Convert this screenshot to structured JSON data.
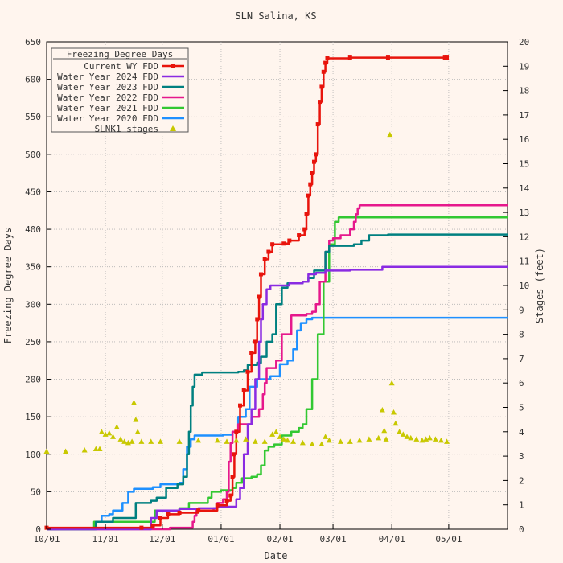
{
  "chart_data": {
    "type": "line",
    "title": "SLN Salina, KS",
    "xlabel": "Date",
    "ylabel": "Freezing Degree Days",
    "y2label": "Stages (feet)",
    "x_ticks": [
      "10/01",
      "11/01",
      "12/01",
      "01/01",
      "02/01",
      "03/01",
      "04/01",
      "05/01"
    ],
    "xlim_days": [
      0,
      243
    ],
    "ylim": [
      0,
      650
    ],
    "y_ticks": [
      0,
      50,
      100,
      150,
      200,
      250,
      300,
      350,
      400,
      450,
      500,
      550,
      600,
      650
    ],
    "y2lim": [
      0,
      20
    ],
    "y2_ticks": [
      0,
      1,
      2,
      3,
      4,
      5,
      6,
      7,
      8,
      9,
      10,
      11,
      12,
      13,
      14,
      15,
      16,
      17,
      18,
      19,
      20
    ],
    "grid": true,
    "legend": {
      "title": "Freezing Degree Days",
      "placement": "top-left"
    },
    "series": [
      {
        "name": "Current WY FDD",
        "color": "#e8140c",
        "marker": "filled-square-with-cross",
        "axis": "left",
        "points": [
          [
            0,
            2
          ],
          [
            50,
            2
          ],
          [
            56,
            5
          ],
          [
            60,
            15
          ],
          [
            64,
            20
          ],
          [
            70,
            22
          ],
          [
            80,
            25
          ],
          [
            90,
            32
          ],
          [
            95,
            38
          ],
          [
            97,
            45
          ],
          [
            98,
            70
          ],
          [
            99,
            100
          ],
          [
            100,
            130
          ],
          [
            102,
            165
          ],
          [
            104,
            185
          ],
          [
            106,
            210
          ],
          [
            108,
            235
          ],
          [
            110,
            250
          ],
          [
            111,
            280
          ],
          [
            112,
            310
          ],
          [
            113,
            340
          ],
          [
            115,
            360
          ],
          [
            117,
            370
          ],
          [
            119,
            380
          ],
          [
            125,
            381
          ],
          [
            128,
            385
          ],
          [
            133,
            392
          ],
          [
            136,
            400
          ],
          [
            137,
            420
          ],
          [
            138,
            445
          ],
          [
            139,
            460
          ],
          [
            140,
            475
          ],
          [
            141,
            490
          ],
          [
            142,
            500
          ],
          [
            143,
            540
          ],
          [
            144,
            570
          ],
          [
            145,
            590
          ],
          [
            146,
            610
          ],
          [
            147,
            622
          ],
          [
            148,
            628
          ],
          [
            160,
            629
          ],
          [
            180,
            629
          ],
          [
            210,
            629
          ],
          [
            211,
            629
          ]
        ]
      },
      {
        "name": "Water Year 2024 FDD",
        "color": "#8a2be2",
        "axis": "left",
        "points": [
          [
            0,
            0
          ],
          [
            53,
            0
          ],
          [
            55,
            15
          ],
          [
            58,
            25
          ],
          [
            70,
            27
          ],
          [
            80,
            28
          ],
          [
            90,
            30
          ],
          [
            100,
            40
          ],
          [
            102,
            55
          ],
          [
            104,
            100
          ],
          [
            106,
            140
          ],
          [
            108,
            160
          ],
          [
            110,
            200
          ],
          [
            112,
            250
          ],
          [
            113,
            280
          ],
          [
            114,
            300
          ],
          [
            116,
            320
          ],
          [
            118,
            325
          ],
          [
            124,
            325
          ],
          [
            128,
            328
          ],
          [
            135,
            330
          ],
          [
            138,
            340
          ],
          [
            142,
            342
          ],
          [
            147,
            345
          ],
          [
            160,
            346
          ],
          [
            176,
            346
          ],
          [
            177,
            350
          ],
          [
            243,
            350
          ]
        ]
      },
      {
        "name": "Water Year 2023 FDD",
        "color": "#008080",
        "axis": "left",
        "points": [
          [
            0,
            0
          ],
          [
            23,
            0
          ],
          [
            26,
            10
          ],
          [
            35,
            15
          ],
          [
            47,
            35
          ],
          [
            55,
            38
          ],
          [
            58,
            42
          ],
          [
            63,
            55
          ],
          [
            69,
            60
          ],
          [
            72,
            70
          ],
          [
            74,
            100
          ],
          [
            75,
            130
          ],
          [
            76,
            165
          ],
          [
            77,
            190
          ],
          [
            78,
            206
          ],
          [
            82,
            209
          ],
          [
            97,
            209
          ],
          [
            101,
            210
          ],
          [
            104,
            212
          ],
          [
            106,
            219
          ],
          [
            111,
            222
          ],
          [
            113,
            230
          ],
          [
            116,
            250
          ],
          [
            119,
            260
          ],
          [
            121,
            300
          ],
          [
            124,
            322
          ],
          [
            127,
            328
          ],
          [
            135,
            330
          ],
          [
            138,
            335
          ],
          [
            141,
            345
          ],
          [
            147,
            370
          ],
          [
            149,
            378
          ],
          [
            162,
            380
          ],
          [
            166,
            385
          ],
          [
            170,
            392
          ],
          [
            180,
            393
          ],
          [
            243,
            393
          ]
        ]
      },
      {
        "name": "Water Year 2022 FDD",
        "color": "#e6188c",
        "axis": "left",
        "points": [
          [
            0,
            0
          ],
          [
            60,
            0
          ],
          [
            65,
            2
          ],
          [
            77,
            10
          ],
          [
            78,
            18
          ],
          [
            79,
            25
          ],
          [
            88,
            28
          ],
          [
            90,
            35
          ],
          [
            93,
            40
          ],
          [
            95,
            50
          ],
          [
            96,
            90
          ],
          [
            97,
            115
          ],
          [
            98,
            130
          ],
          [
            101,
            140
          ],
          [
            108,
            150
          ],
          [
            112,
            160
          ],
          [
            114,
            180
          ],
          [
            115,
            195
          ],
          [
            116,
            215
          ],
          [
            121,
            225
          ],
          [
            124,
            260
          ],
          [
            129,
            285
          ],
          [
            137,
            287
          ],
          [
            140,
            290
          ],
          [
            142,
            300
          ],
          [
            144,
            330
          ],
          [
            147,
            370
          ],
          [
            149,
            385
          ],
          [
            151,
            388
          ],
          [
            155,
            392
          ],
          [
            160,
            400
          ],
          [
            162,
            410
          ],
          [
            163,
            420
          ],
          [
            164,
            428
          ],
          [
            165,
            432
          ],
          [
            243,
            432
          ]
        ]
      },
      {
        "name": "Water Year 2021 FDD",
        "color": "#32c832",
        "axis": "left",
        "points": [
          [
            0,
            0
          ],
          [
            23,
            0
          ],
          [
            25,
            10
          ],
          [
            55,
            10
          ],
          [
            57,
            25
          ],
          [
            70,
            28
          ],
          [
            75,
            35
          ],
          [
            85,
            42
          ],
          [
            87,
            50
          ],
          [
            92,
            52
          ],
          [
            98,
            55
          ],
          [
            100,
            62
          ],
          [
            103,
            68
          ],
          [
            108,
            70
          ],
          [
            111,
            73
          ],
          [
            113,
            85
          ],
          [
            115,
            105
          ],
          [
            117,
            110
          ],
          [
            120,
            113
          ],
          [
            124,
            125
          ],
          [
            129,
            130
          ],
          [
            133,
            135
          ],
          [
            135,
            140
          ],
          [
            137,
            160
          ],
          [
            140,
            200
          ],
          [
            143,
            260
          ],
          [
            146,
            330
          ],
          [
            149,
            380
          ],
          [
            152,
            410
          ],
          [
            154,
            416
          ],
          [
            243,
            416
          ]
        ]
      },
      {
        "name": "Water Year 2020 FDD",
        "color": "#1e90ff",
        "axis": "left",
        "points": [
          [
            0,
            0
          ],
          [
            24,
            0
          ],
          [
            26,
            10
          ],
          [
            29,
            18
          ],
          [
            33,
            20
          ],
          [
            35,
            25
          ],
          [
            40,
            35
          ],
          [
            43,
            50
          ],
          [
            46,
            54
          ],
          [
            56,
            56
          ],
          [
            60,
            60
          ],
          [
            70,
            62
          ],
          [
            72,
            80
          ],
          [
            74,
            110
          ],
          [
            76,
            120
          ],
          [
            78,
            125
          ],
          [
            93,
            126
          ],
          [
            98,
            130
          ],
          [
            101,
            150
          ],
          [
            105,
            160
          ],
          [
            107,
            190
          ],
          [
            111,
            200
          ],
          [
            118,
            204
          ],
          [
            123,
            220
          ],
          [
            127,
            225
          ],
          [
            130,
            240
          ],
          [
            132,
            265
          ],
          [
            134,
            275
          ],
          [
            137,
            280
          ],
          [
            140,
            282
          ],
          [
            243,
            282
          ]
        ]
      }
    ],
    "stages_series": {
      "name": "SLNK1 stages",
      "color": "#c8c800",
      "marker": "triangle",
      "axis": "right",
      "points": [
        [
          0,
          3.2
        ],
        [
          10,
          3.2
        ],
        [
          20,
          3.25
        ],
        [
          26,
          3.3
        ],
        [
          28,
          3.3
        ],
        [
          29,
          4.0
        ],
        [
          31,
          3.9
        ],
        [
          33,
          3.95
        ],
        [
          35,
          3.8
        ],
        [
          37,
          4.2
        ],
        [
          39,
          3.7
        ],
        [
          41,
          3.6
        ],
        [
          43,
          3.55
        ],
        [
          45,
          3.6
        ],
        [
          46,
          5.2
        ],
        [
          47,
          4.5
        ],
        [
          48,
          4.0
        ],
        [
          50,
          3.6
        ],
        [
          55,
          3.6
        ],
        [
          60,
          3.6
        ],
        [
          70,
          3.6
        ],
        [
          80,
          3.65
        ],
        [
          90,
          3.65
        ],
        [
          95,
          3.6
        ],
        [
          100,
          3.65
        ],
        [
          105,
          3.7
        ],
        [
          110,
          3.6
        ],
        [
          115,
          3.6
        ],
        [
          119,
          3.9
        ],
        [
          121,
          4.0
        ],
        [
          123,
          3.8
        ],
        [
          125,
          3.7
        ],
        [
          127,
          3.65
        ],
        [
          130,
          3.6
        ],
        [
          135,
          3.55
        ],
        [
          140,
          3.5
        ],
        [
          145,
          3.5
        ],
        [
          147,
          3.8
        ],
        [
          149,
          3.65
        ],
        [
          155,
          3.6
        ],
        [
          160,
          3.6
        ],
        [
          165,
          3.65
        ],
        [
          170,
          3.7
        ],
        [
          175,
          3.75
        ],
        [
          177,
          4.9
        ],
        [
          178,
          4.05
        ],
        [
          179,
          3.7
        ],
        [
          181,
          16.2
        ],
        [
          182,
          6.0
        ],
        [
          183,
          4.8
        ],
        [
          184,
          4.35
        ],
        [
          186,
          4.0
        ],
        [
          188,
          3.9
        ],
        [
          190,
          3.8
        ],
        [
          192,
          3.75
        ],
        [
          195,
          3.7
        ],
        [
          198,
          3.65
        ],
        [
          200,
          3.7
        ],
        [
          202,
          3.75
        ],
        [
          205,
          3.7
        ],
        [
          208,
          3.65
        ],
        [
          211,
          3.6
        ]
      ]
    }
  }
}
